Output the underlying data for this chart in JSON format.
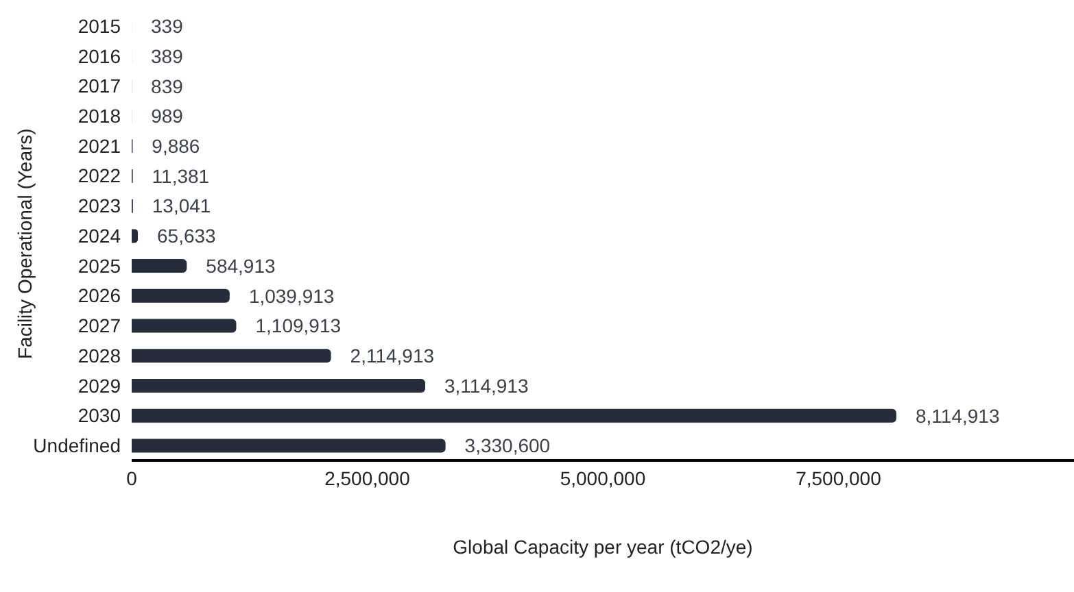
{
  "chart_data": {
    "type": "bar",
    "orientation": "horizontal",
    "xlabel": "Global Capacity per year (tCO2/ye)",
    "ylabel": "Facility Operational (Years)",
    "categories": [
      "2015",
      "2016",
      "2017",
      "2018",
      "2021",
      "2022",
      "2023",
      "2024",
      "2025",
      "2026",
      "2027",
      "2028",
      "2029",
      "2030",
      "Undefined"
    ],
    "values": [
      339,
      389,
      839,
      989,
      9886,
      11381,
      13041,
      65633,
      584913,
      1039913,
      1109913,
      2114913,
      3114913,
      8114913,
      3330600
    ],
    "value_labels": [
      "339",
      "389",
      "839",
      "989",
      "9,886",
      "11,381",
      "13,041",
      "65,633",
      "584,913",
      "1,039,913",
      "1,109,913",
      "2,114,913",
      "3,114,913",
      "8,114,913",
      "3,330,600"
    ],
    "color": "#262d3a",
    "xlim": [
      0,
      10000000
    ],
    "xticks": [
      0,
      {
        "value": 2500000,
        "label": "2,500,000"
      },
      {
        "value": 5000000,
        "label": "5,000,000"
      },
      {
        "value": 7500000,
        "label": "7,500,000"
      }
    ],
    "grid": false,
    "legend": false
  }
}
